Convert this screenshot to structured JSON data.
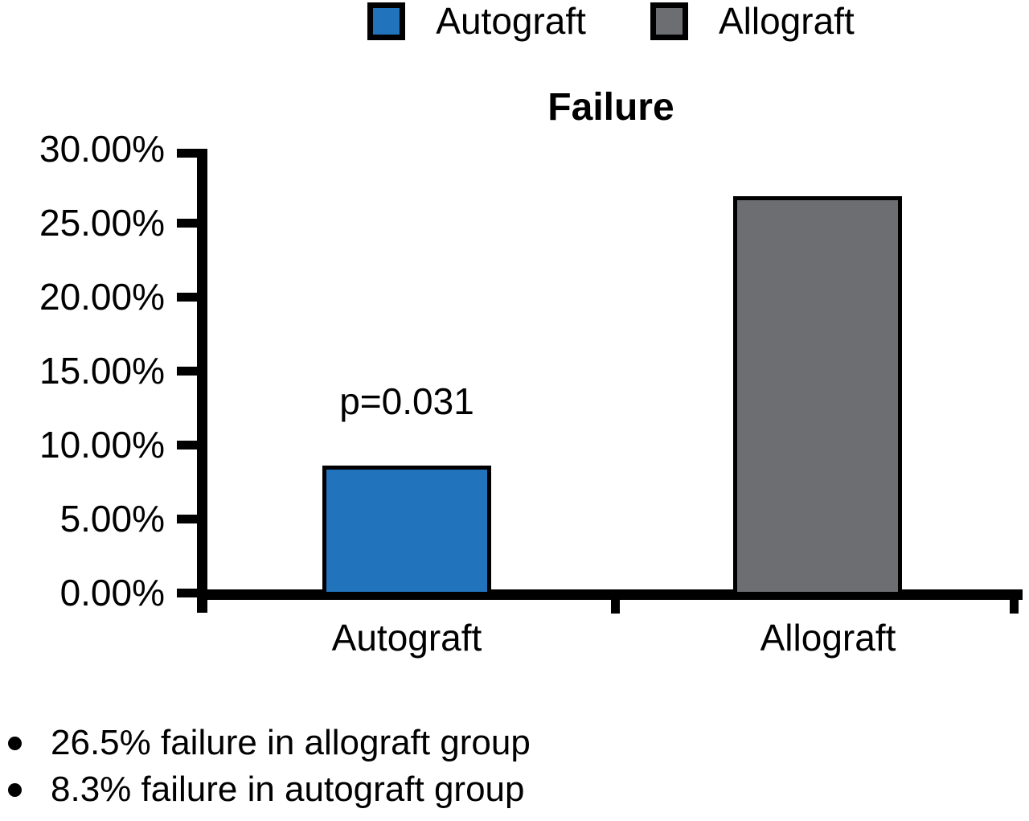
{
  "chart_data": {
    "type": "bar",
    "title": "Failure",
    "categories": [
      "Autograft",
      "Allograft"
    ],
    "values": [
      8.3,
      26.5
    ],
    "bar_colors": [
      "#2173bb",
      "#6d6e71"
    ],
    "ylim": [
      0,
      30
    ],
    "yticks": [
      "0.00%",
      "5.00%",
      "10.00%",
      "15.00%",
      "20.00%",
      "25.00%",
      "30.00%"
    ],
    "ytick_values": [
      0,
      5,
      10,
      15,
      20,
      25,
      30
    ],
    "grid": "off",
    "legend_position": "top-center",
    "legend": [
      {
        "label": "Autograft",
        "color": "#2173bb"
      },
      {
        "label": "Allograft",
        "color": "#6d6e71"
      }
    ],
    "annotations": [
      {
        "text": "p=0.031",
        "target": "Autograft"
      }
    ]
  },
  "notes": {
    "bullets": [
      "26.5% failure in allograft group",
      "8.3% failure in autograft group"
    ]
  }
}
